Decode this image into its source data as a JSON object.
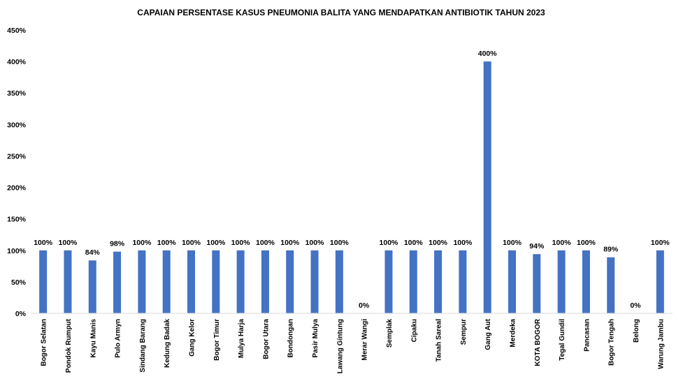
{
  "chart_data": {
    "type": "bar",
    "title": "CAPAIAN  PERSENTASE KASUS PNEUMONIA  BALITA YANG MENDAPATKAN  ANTIBIOTIK TAHUN 2023",
    "xlabel": "",
    "ylabel": "",
    "ylim": [
      0,
      450
    ],
    "y_ticks": [
      "0%",
      "50%",
      "100%",
      "150%",
      "200%",
      "250%",
      "300%",
      "350%",
      "400%",
      "450%"
    ],
    "grid": false,
    "legend": "none",
    "bar_color": "#4472C4",
    "categories": [
      "Bogor Selatan",
      "Pondok Rumput",
      "Kayu Manis",
      "Pulo Armyn",
      "Sindang Barang",
      "Kedung Badak",
      "Gang Kelor",
      "Bogor Timur",
      "Mulya Harja",
      "Bogor Utara",
      "Bondongan",
      "Pasir Mulya",
      "Lawang Gintung",
      "Merar Wangi",
      "Semplak",
      "Cipaku",
      "Tanah Sareal",
      "Sempur",
      "Gang Aut",
      "Merdeka",
      "KOTA BOGOR",
      "Tegal Gundil",
      "Pancasan",
      "Bogor Tengah",
      "Belong",
      "Warung Jambu"
    ],
    "values": [
      100,
      100,
      84,
      98,
      100,
      100,
      100,
      100,
      100,
      100,
      100,
      100,
      100,
      0,
      100,
      100,
      100,
      100,
      400,
      100,
      94,
      100,
      100,
      89,
      0,
      100
    ],
    "data_labels": [
      "100%",
      "100%",
      "84%",
      "98%",
      "100%",
      "100%",
      "100%",
      "100%",
      "100%",
      "100%",
      "100%",
      "100%",
      "100%",
      "0%",
      "100%",
      "100%",
      "100%",
      "100%",
      "400%",
      "100%",
      "94%",
      "100%",
      "100%",
      "89%",
      "0%",
      "100%"
    ]
  }
}
